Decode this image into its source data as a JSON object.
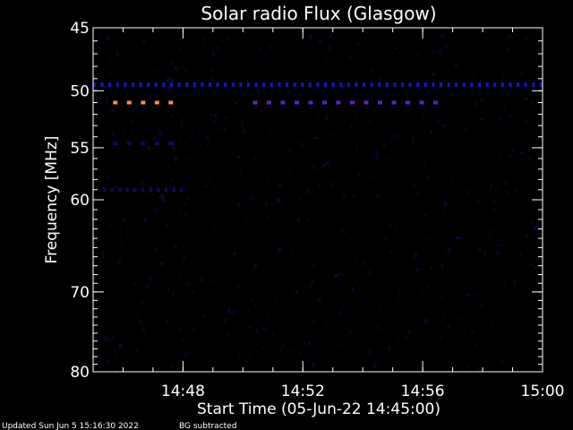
{
  "chart_data": {
    "type": "heatmap",
    "title": "Solar radio Flux (Glasgow)",
    "xlabel": "Start Time (05-Jun-22 14:45:00)",
    "ylabel": "Frequency [MHz]",
    "x_unit": "time (HH:MM)",
    "xlim": [
      "14:45",
      "15:00"
    ],
    "ylim": [
      45,
      80
    ],
    "y_scale": "log",
    "y_inverted": true,
    "x_ticks": [
      "14:48",
      "14:52",
      "14:56",
      "15:00"
    ],
    "y_ticks": [
      45,
      50,
      55,
      60,
      70,
      80
    ],
    "y_tick_labels": [
      "45",
      "50",
      "55",
      "60",
      "70",
      "80"
    ],
    "grid": false,
    "background_color": "#000000",
    "colors": {
      "background_emission": "#0b0b3a",
      "rfi_band": "#1a16d6",
      "strong_emission": "#ff8a4a",
      "medium_emission": "#5a22c8",
      "axes": "#ffffff"
    },
    "features": [
      {
        "label": "RFI band",
        "freq_mhz": 49.5,
        "time_start": "14:45",
        "time_end": "15:00",
        "level": "medium",
        "pattern": "dotted"
      },
      {
        "label": "Emission 51 MHz (early)",
        "freq_mhz": 51.0,
        "time_start": "14:45:40",
        "time_end": "14:47:45",
        "level": "high",
        "pattern": "dashed"
      },
      {
        "label": "Emission 51 MHz (mid)",
        "freq_mhz": 51.0,
        "time_start": "14:50:20",
        "time_end": "14:56:30",
        "level": "medium-high",
        "pattern": "dashed"
      },
      {
        "label": "Emission 54.6 MHz",
        "freq_mhz": 54.6,
        "time_start": "14:45:40",
        "time_end": "14:47:45",
        "level": "low",
        "pattern": "dashed"
      },
      {
        "label": "Emission 59 MHz",
        "freq_mhz": 59.0,
        "time_start": "14:45:20",
        "time_end": "14:48:00",
        "level": "low",
        "pattern": "dotted"
      }
    ]
  },
  "footer": {
    "updated": "Updated Sun Jun  5 15:16:30 2022",
    "note": "BG subtracted"
  }
}
